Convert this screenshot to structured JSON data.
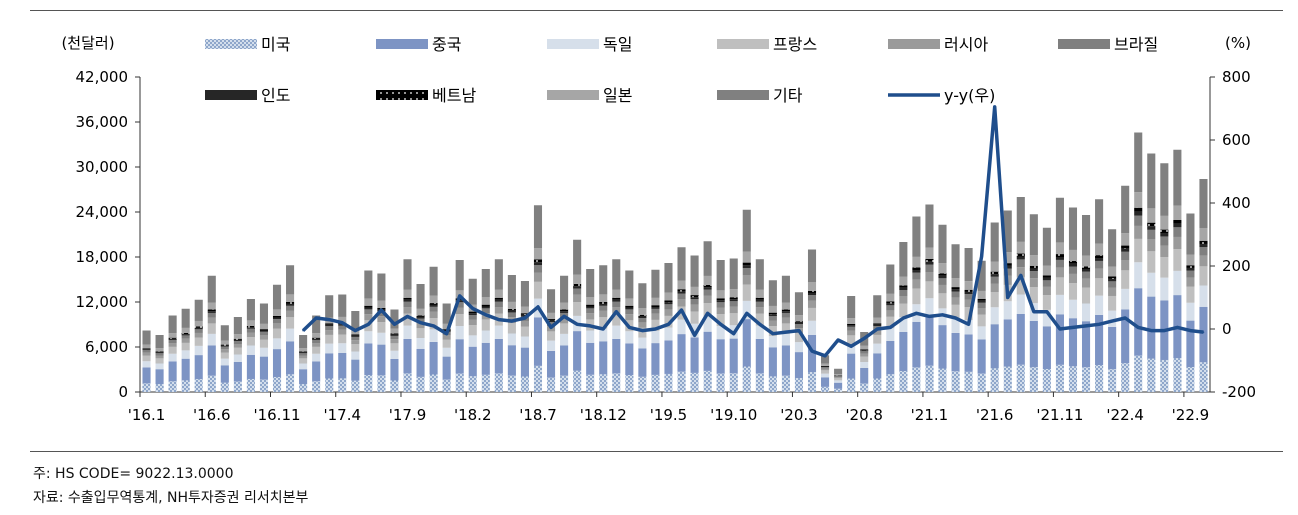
{
  "notes": {
    "code": "주: HS CODE= 9022.13.0000",
    "source": "자료:  수출입무역통계, NH투자증권 리서치본부"
  },
  "chart_data": {
    "type": "bar",
    "stacked": true,
    "left_unit": "(천달러)",
    "right_unit": "(%)",
    "ylim": [
      0,
      42000
    ],
    "yticks": [
      "42,000",
      "36,000",
      "30,000",
      "24,000",
      "18,000",
      "12,000",
      "6,000",
      "0"
    ],
    "y2lim": [
      -200,
      800
    ],
    "y2ticks": [
      "800",
      "600",
      "400",
      "200",
      "0",
      "-200"
    ],
    "xticks": [
      {
        "label": "'16.1",
        "i": 0
      },
      {
        "label": "'16.6",
        "i": 5
      },
      {
        "label": "'16.11",
        "i": 10
      },
      {
        "label": "'17.4",
        "i": 15
      },
      {
        "label": "'17.9",
        "i": 20
      },
      {
        "label": "'18.2",
        "i": 25
      },
      {
        "label": "'18.7",
        "i": 30
      },
      {
        "label": "'18.12",
        "i": 35
      },
      {
        "label": "'19.5",
        "i": 40
      },
      {
        "label": "'19.10",
        "i": 45
      },
      {
        "label": "'20.3",
        "i": 50
      },
      {
        "label": "'20.8",
        "i": 55
      },
      {
        "label": "'21.1",
        "i": 60
      },
      {
        "label": "'21.6",
        "i": 65
      },
      {
        "label": "'21.11",
        "i": 70
      },
      {
        "label": "'22.4",
        "i": 75
      },
      {
        "label": "'22.9",
        "i": 80
      }
    ],
    "legend_position": "top",
    "series": [
      {
        "name": "미국",
        "color": "#a9bcd6",
        "pattern": "dots"
      },
      {
        "name": "중국",
        "color": "#7d94c4"
      },
      {
        "name": "독일",
        "color": "#d6dfea"
      },
      {
        "name": "프랑스",
        "color": "#bfbfbf"
      },
      {
        "name": "러시아",
        "color": "#9a9a9a"
      },
      {
        "name": "브라질",
        "color": "#7f7f7f"
      },
      {
        "name": "인도",
        "color": "#262626"
      },
      {
        "name": "베트남",
        "color": "#000000",
        "pattern": "dots-white"
      },
      {
        "name": "일본",
        "color": "#a6a6a6"
      },
      {
        "name": "기타",
        "color": "#808080"
      },
      {
        "name": "y-y(우)",
        "color": "#1f4e8c",
        "type": "line",
        "axis": "right"
      }
    ],
    "totals": [
      8200,
      7600,
      10200,
      11100,
      12300,
      15500,
      8900,
      10000,
      12400,
      11800,
      14300,
      16900,
      7600,
      10200,
      12900,
      13000,
      10800,
      16200,
      15800,
      11000,
      17700,
      14400,
      16700,
      11800,
      17600,
      15100,
      16400,
      17700,
      15600,
      14800,
      24900,
      13700,
      15500,
      20300,
      16400,
      16900,
      17700,
      16200,
      14500,
      16300,
      17200,
      19300,
      18200,
      20100,
      17600,
      17800,
      24300,
      17700,
      14900,
      15500,
      13300,
      19000,
      4900,
      3100,
      12800,
      8000,
      12900,
      17000,
      20000,
      23400,
      25000,
      22300,
      19700,
      19200,
      17500,
      22600,
      24200,
      26000,
      23700,
      21900,
      25900,
      24600,
      23600,
      25700,
      21700,
      27500,
      34600,
      31800,
      30500,
      32300,
      23800,
      28400
    ],
    "yoy": [
      null,
      null,
      null,
      null,
      null,
      null,
      null,
      null,
      null,
      null,
      null,
      null,
      -5,
      35,
      30,
      20,
      -5,
      15,
      60,
      15,
      40,
      20,
      10,
      -15,
      105,
      65,
      45,
      30,
      25,
      35,
      70,
      5,
      40,
      15,
      10,
      0,
      55,
      5,
      -5,
      0,
      15,
      60,
      -20,
      50,
      15,
      -15,
      50,
      15,
      -15,
      -10,
      -5,
      -70,
      -85,
      -35,
      -55,
      -30,
      0,
      5,
      35,
      50,
      40,
      45,
      35,
      15,
      230,
      705,
      100,
      170,
      55,
      55,
      0,
      5,
      10,
      15,
      25,
      35,
      5,
      -5,
      -5,
      5,
      -5,
      -10
    ]
  }
}
